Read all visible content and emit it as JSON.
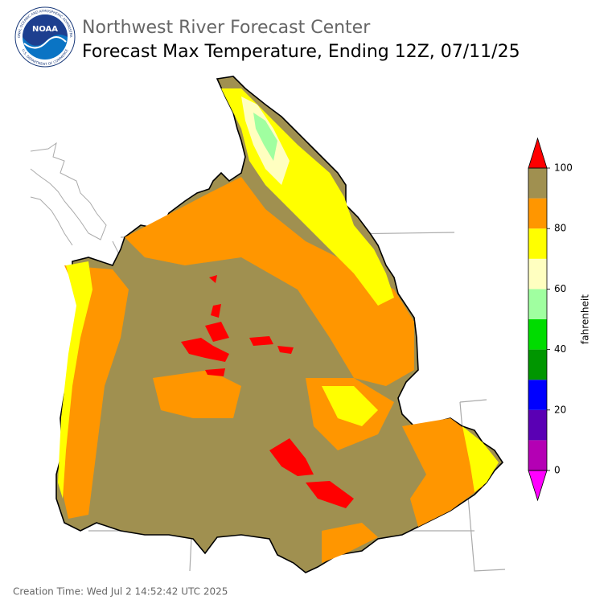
{
  "header": {
    "org": "Northwest River Forecast Center",
    "title": "Forecast Max Temperature, Ending 12Z, 07/11/25"
  },
  "logo": {
    "text": "NOAA",
    "ring_top": "NATIONAL OCEANIC AND ATMOSPHERIC ADMINISTRATION",
    "ring_bottom": "U.S. DEPARTMENT OF COMMERCE"
  },
  "colorbar": {
    "label": "fahrenheit",
    "lim": [
      0,
      100
    ],
    "ticks": [
      0,
      20,
      40,
      60,
      80,
      100
    ],
    "bounds": [
      0,
      10,
      20,
      30,
      40,
      50,
      60,
      70,
      80,
      90,
      100
    ],
    "colors": [
      "#b400b4",
      "#5a00b4",
      "#0000ff",
      "#009600",
      "#00dc00",
      "#a0ffa0",
      "#ffffc0",
      "#ffff00",
      "#ff9600",
      "#a09050"
    ],
    "under_color": "#ff00ff",
    "over_color": "#ff0000"
  },
  "footer": {
    "creation_time": "Creation Time: Wed Jul 2 14:52:42 UTC 2025"
  }
}
